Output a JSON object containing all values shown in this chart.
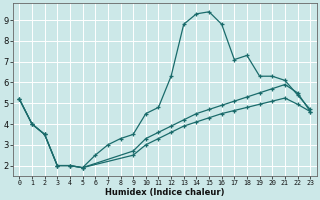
{
  "bg_color": "#cce8e8",
  "grid_color": "#ffffff",
  "line_color": "#1a6b6b",
  "xlabel": "Humidex (Indice chaleur)",
  "xlim": [
    -0.5,
    23.5
  ],
  "ylim": [
    1.5,
    9.8
  ],
  "yticks": [
    2,
    3,
    4,
    5,
    6,
    7,
    8,
    9
  ],
  "xticks": [
    0,
    1,
    2,
    3,
    4,
    5,
    6,
    7,
    8,
    9,
    10,
    11,
    12,
    13,
    14,
    15,
    16,
    17,
    18,
    19,
    20,
    21,
    22,
    23
  ],
  "line1_x": [
    0,
    1,
    2,
    3,
    4,
    5,
    6,
    7,
    8,
    9,
    10,
    11,
    12,
    13,
    14,
    15,
    16,
    17,
    18,
    19,
    20,
    21,
    22,
    23
  ],
  "line1_y": [
    5.2,
    4.0,
    3.5,
    2.0,
    2.0,
    1.9,
    2.5,
    3.0,
    3.3,
    3.5,
    4.5,
    4.8,
    6.3,
    8.8,
    9.3,
    9.4,
    8.8,
    7.1,
    7.3,
    6.3,
    6.3,
    6.1,
    5.4,
    4.7
  ],
  "line2_x": [
    0,
    1,
    2,
    3,
    4,
    5,
    9,
    10,
    11,
    12,
    13,
    14,
    15,
    16,
    17,
    18,
    19,
    20,
    21,
    22,
    23
  ],
  "line2_y": [
    5.2,
    4.0,
    3.5,
    2.0,
    2.0,
    1.9,
    2.7,
    3.3,
    3.6,
    3.9,
    4.2,
    4.5,
    4.7,
    4.9,
    5.1,
    5.3,
    5.5,
    5.7,
    5.9,
    5.5,
    4.6
  ],
  "line3_x": [
    0,
    1,
    2,
    3,
    4,
    5,
    9,
    10,
    11,
    12,
    13,
    14,
    15,
    16,
    17,
    18,
    19,
    20,
    21,
    22,
    23
  ],
  "line3_y": [
    5.2,
    4.0,
    3.5,
    2.0,
    2.0,
    1.9,
    2.5,
    3.0,
    3.3,
    3.6,
    3.9,
    4.1,
    4.3,
    4.5,
    4.65,
    4.8,
    4.95,
    5.1,
    5.25,
    4.95,
    4.6
  ]
}
